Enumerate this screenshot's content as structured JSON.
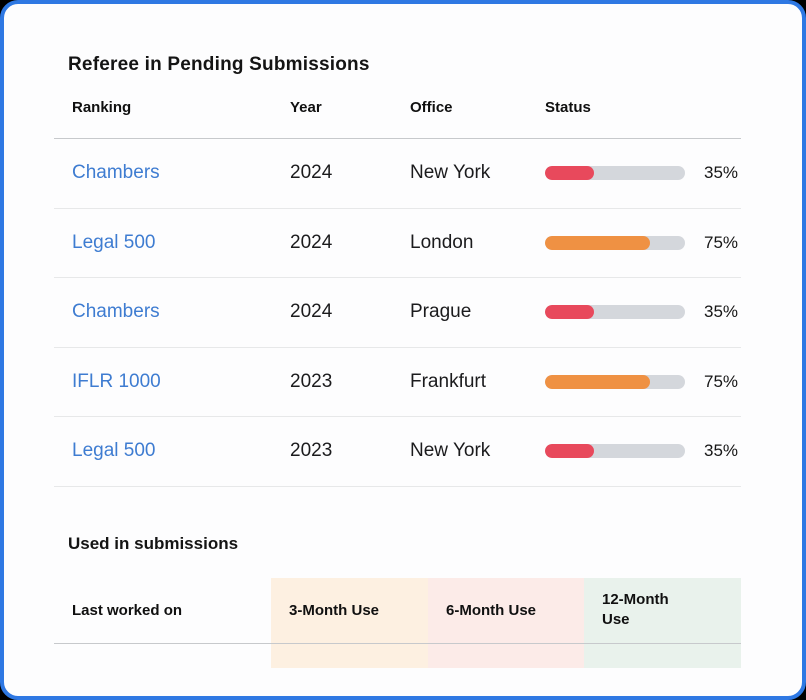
{
  "card": {
    "accent_border": "#2e78e3"
  },
  "pending_table": {
    "title": "Referee in Pending Submissions",
    "columns": {
      "ranking": "Ranking",
      "year": "Year",
      "office": "Office",
      "status": "Status"
    },
    "track_color": "#d4d7dc",
    "status_colors": {
      "red": "#e8495c",
      "orange": "#ef9143"
    },
    "rows": [
      {
        "ranking": "Chambers",
        "year": "2024",
        "office": "New York",
        "percent": 35,
        "percent_label": "35%",
        "bar_color": "#e8495c"
      },
      {
        "ranking": "Legal 500",
        "year": "2024",
        "office": "London",
        "percent": 75,
        "percent_label": "75%",
        "bar_color": "#ef9143"
      },
      {
        "ranking": "Chambers",
        "year": "2024",
        "office": "Prague",
        "percent": 35,
        "percent_label": "35%",
        "bar_color": "#e8495c"
      },
      {
        "ranking": "IFLR 1000",
        "year": "2023",
        "office": "Frankfurt",
        "percent": 75,
        "percent_label": "75%",
        "bar_color": "#ef9143"
      },
      {
        "ranking": "Legal 500",
        "year": "2023",
        "office": "New York",
        "percent": 35,
        "percent_label": "35%",
        "bar_color": "#e8495c"
      }
    ]
  },
  "used_section": {
    "title": "Used in submissions",
    "columns": [
      {
        "label": "Last worked on",
        "bg": "transparent"
      },
      {
        "label": "3-Month Use",
        "bg": "#fdf0e1"
      },
      {
        "label": "6-Month Use",
        "bg": "#fcebe8"
      },
      {
        "label": "12-Month Use",
        "bg": "#e9f2ec"
      }
    ]
  }
}
